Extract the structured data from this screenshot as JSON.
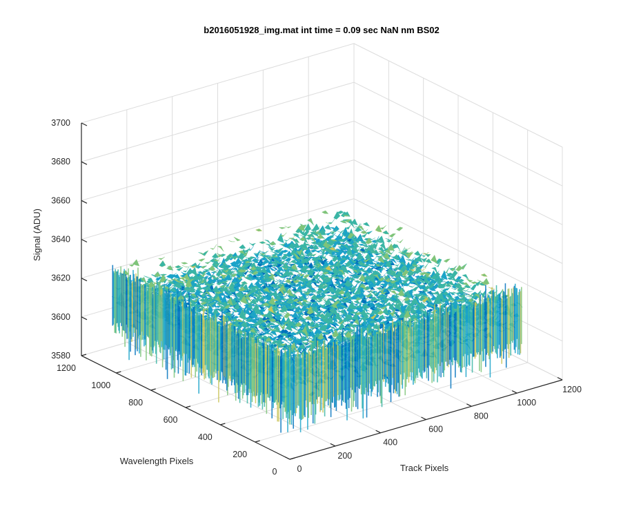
{
  "chart_data": {
    "type": "surface",
    "title": "b2016051928_img.mat int time = 0.09 sec  NaN nm BS02",
    "xlabel": "Track Pixels",
    "ylabel": "Wavelength Pixels",
    "zlabel": "Signal (ADU)",
    "xlim": [
      0,
      1200
    ],
    "ylim": [
      0,
      1200
    ],
    "zlim": [
      3580,
      3700
    ],
    "xticks": [
      "0",
      "200",
      "400",
      "600",
      "800",
      "1000",
      "1200"
    ],
    "yticks": [
      "0",
      "200",
      "400",
      "600",
      "800",
      "1000",
      "1200"
    ],
    "zticks": [
      "3580",
      "3600",
      "3620",
      "3640",
      "3660",
      "3680",
      "3700"
    ],
    "surface_extent": {
      "x": [
        0,
        1024
      ],
      "y": [
        0,
        1024
      ]
    },
    "signal_mean": 3620,
    "signal_range": [
      3590,
      3680
    ],
    "grid": true,
    "colormap": [
      "#0072bd",
      "#1aa3c9",
      "#3ab5a5",
      "#7fc47a",
      "#c9c45a",
      "#e6bd4c"
    ]
  }
}
